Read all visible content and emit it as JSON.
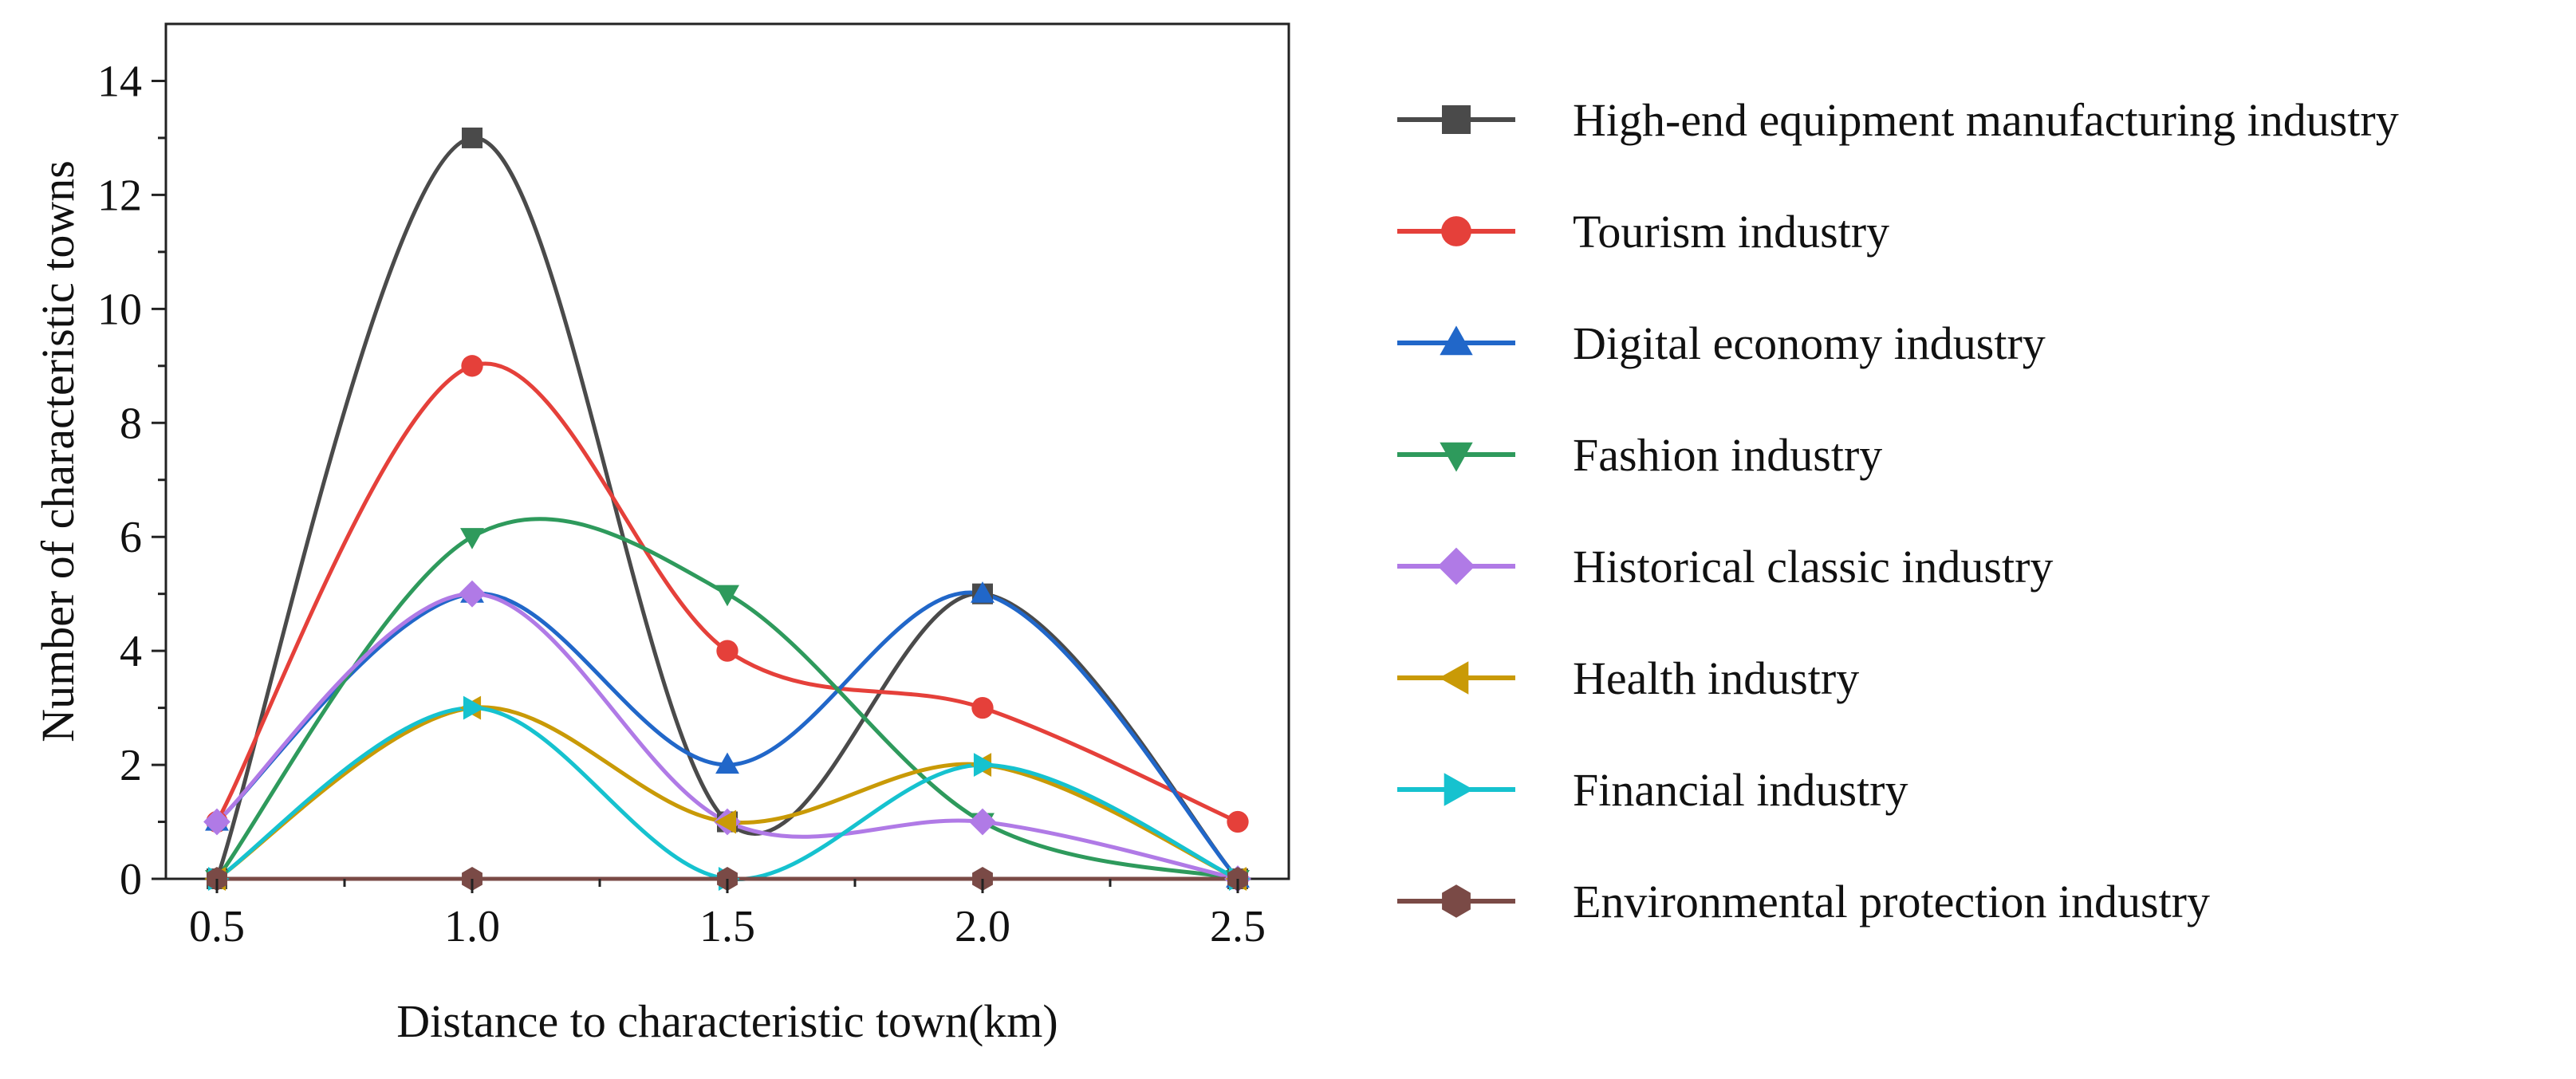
{
  "chart_data": {
    "type": "line",
    "smooth": true,
    "title": "",
    "xlabel": "Distance to characteristic town(km)",
    "ylabel": "Number of characteristic towns",
    "x": [
      0.5,
      1.0,
      1.5,
      2.0,
      2.5
    ],
    "xlim": [
      0.4,
      2.6
    ],
    "ylim": [
      0,
      15
    ],
    "xticks": [
      0.5,
      1.0,
      1.5,
      2.0,
      2.5
    ],
    "yticks": [
      0,
      2,
      4,
      6,
      8,
      10,
      12,
      14
    ],
    "xtick_labels": [
      "0.5",
      "1.0",
      "1.5",
      "2.0",
      "2.5"
    ],
    "ytick_labels": [
      "0",
      "2",
      "4",
      "6",
      "8",
      "10",
      "12",
      "14"
    ],
    "grid": false,
    "legend_position": "right",
    "series": [
      {
        "name": "High-end equipment manufacturing industry",
        "values": [
          0,
          13,
          1,
          5,
          0
        ],
        "color": "#4a4a4a",
        "marker": "square"
      },
      {
        "name": "Tourism industry",
        "values": [
          1,
          9,
          4,
          3,
          1
        ],
        "color": "#e5403a",
        "marker": "circle"
      },
      {
        "name": "Digital economy industry",
        "values": [
          1,
          5,
          2,
          5,
          0
        ],
        "color": "#2167c9",
        "marker": "triangle-up"
      },
      {
        "name": "Fashion industry",
        "values": [
          0,
          6,
          5,
          1,
          0
        ],
        "color": "#2e9a5c",
        "marker": "triangle-down"
      },
      {
        "name": "Historical classic industry",
        "values": [
          1,
          5,
          1,
          1,
          0
        ],
        "color": "#b07ae6",
        "marker": "diamond"
      },
      {
        "name": "Health industry",
        "values": [
          0,
          3,
          1,
          2,
          0
        ],
        "color": "#c99a06",
        "marker": "triangle-left"
      },
      {
        "name": "Financial industry",
        "values": [
          0,
          3,
          0,
          2,
          0
        ],
        "color": "#16c2cf",
        "marker": "triangle-right"
      },
      {
        "name": "Environmental protection industry",
        "values": [
          0,
          0,
          0,
          0,
          0
        ],
        "color": "#7a4a46",
        "marker": "hexagon"
      }
    ]
  }
}
